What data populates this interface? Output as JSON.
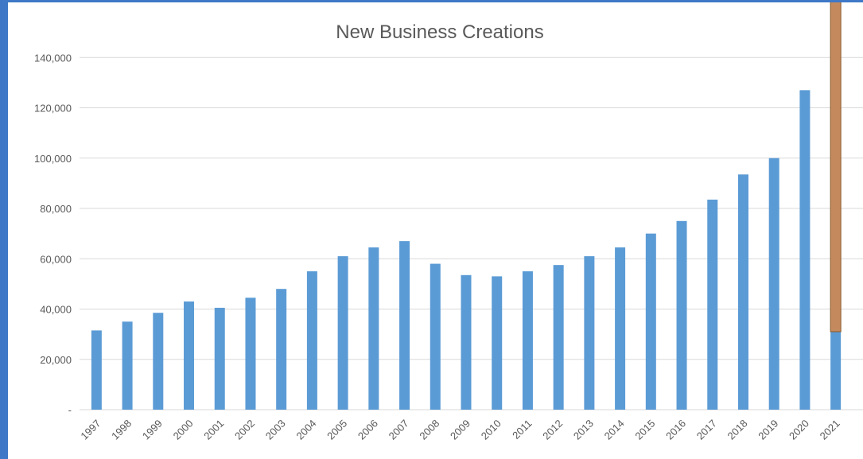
{
  "chart_data": {
    "type": "bar",
    "title": "New Business Creations",
    "xlabel": "",
    "ylabel": "",
    "ylim": [
      0,
      160000
    ],
    "yticks": [
      0,
      20000,
      40000,
      60000,
      80000,
      100000,
      120000,
      140000
    ],
    "ytick_labels": [
      "-",
      "20,000",
      "40,000",
      "60,000",
      "80,000",
      "100,000",
      "120,000",
      "140,000"
    ],
    "grid": true,
    "legend": "none",
    "categories": [
      "1997",
      "1998",
      "1999",
      "2000",
      "2001",
      "2002",
      "2003",
      "2004",
      "2005",
      "2006",
      "2007",
      "2008",
      "2009",
      "2010",
      "2011",
      "2012",
      "2013",
      "2014",
      "2015",
      "2016",
      "2017",
      "2018",
      "2019",
      "2020",
      "2021"
    ],
    "series": [
      {
        "color": "#5b9bd5",
        "values": [
          31500,
          35000,
          38500,
          43000,
          40500,
          44500,
          48000,
          55000,
          61000,
          64500,
          67000,
          58000,
          53500,
          53000,
          55000,
          57500,
          61000,
          64500,
          70000,
          75000,
          83500,
          93500,
          100000,
          127000,
          31000
        ]
      },
      {
        "color": "#c48a5e",
        "values": [
          null,
          null,
          null,
          null,
          null,
          null,
          null,
          null,
          null,
          null,
          null,
          null,
          null,
          null,
          null,
          null,
          null,
          null,
          null,
          null,
          null,
          null,
          null,
          null,
          134000
        ]
      }
    ]
  },
  "colors": {
    "frame_background": "#3e78c6",
    "plot_background": "#ffffff",
    "gridline": "#d9d9d9",
    "text": "#595959",
    "bar_outline": "#8a5a2b"
  }
}
